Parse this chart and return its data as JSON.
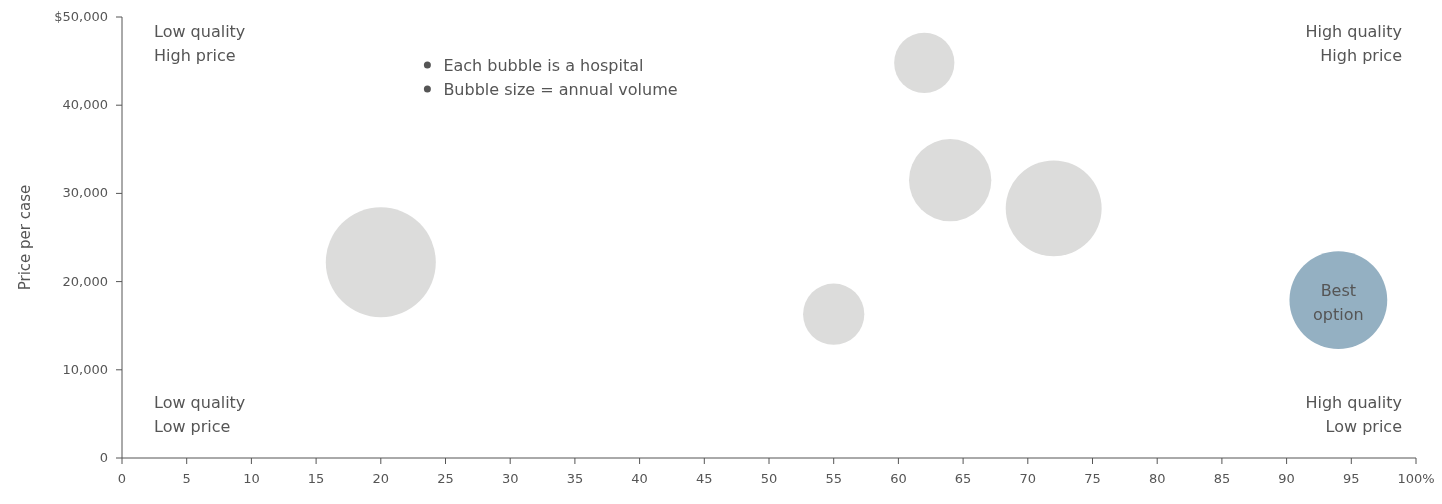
{
  "chart_data": {
    "type": "bubble",
    "ylabel": "Price per case",
    "x": [
      20,
      55,
      62,
      64,
      72,
      94
    ],
    "values": [
      22200,
      16300,
      44800,
      31500,
      28300,
      17900
    ],
    "sizes": [
      1,
      0.31,
      0.3,
      0.56,
      0.76,
      0.79
    ],
    "colors": [
      "#dcdcdb",
      "#dcdcdb",
      "#dcdcdb",
      "#dcdcdb",
      "#dcdcdb",
      "#94b0c2"
    ],
    "xlim": [
      0,
      100
    ],
    "xticks": [
      0,
      5,
      10,
      15,
      20,
      25,
      30,
      35,
      40,
      45,
      50,
      55,
      60,
      65,
      70,
      75,
      80,
      85,
      90,
      95,
      {
        "value": 100,
        "label": "100%"
      }
    ],
    "ylim": [
      0,
      50000
    ],
    "yticks": [
      {
        "value": 0,
        "label": "0"
      },
      {
        "value": 10000,
        "label": "10,000"
      },
      {
        "value": 20000,
        "label": "20,000"
      },
      {
        "value": 30000,
        "label": "30,000"
      },
      {
        "value": 40000,
        "label": "40,000"
      },
      {
        "value": 50000,
        "label": "$50,000"
      }
    ],
    "annotations": [
      "Low quality\nHigh price",
      "High quality\nHigh price",
      "Low quality\nLow price",
      "High quality\nLow price",
      "Each bubble is a hospital",
      "Bubble size = annual volume",
      {
        "text": "Best option",
        "x": 94,
        "y": 17900
      }
    ]
  }
}
